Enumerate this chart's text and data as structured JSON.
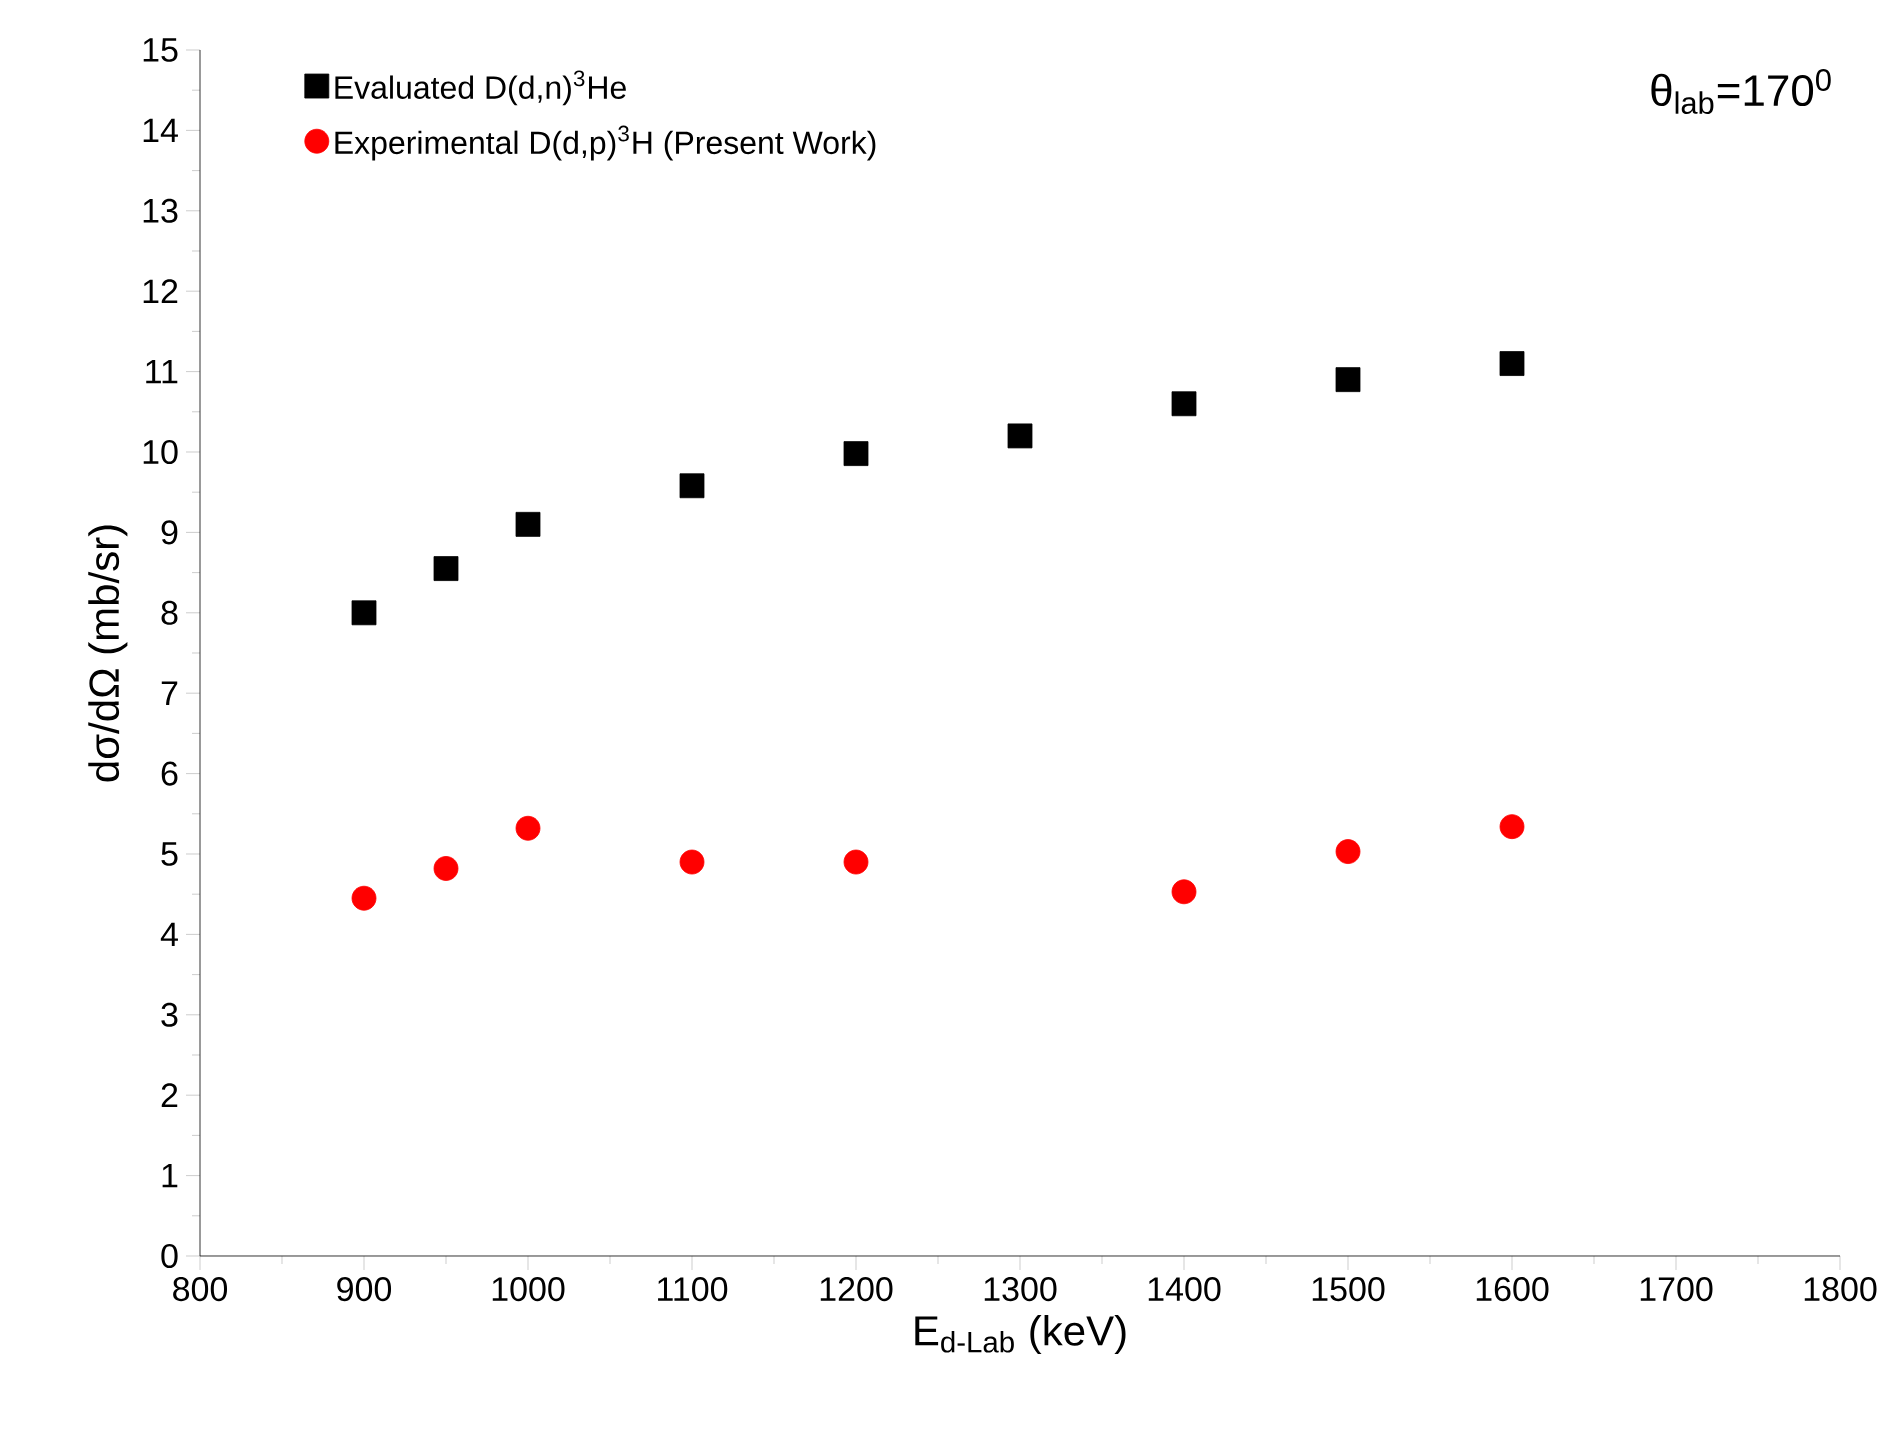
{
  "chart_data": {
    "type": "scatter",
    "xlabel": "E$_{d-Lab}$ (keV)",
    "ylabel": "dσ/dΩ (mb/sr)",
    "annotations": [
      "θ$_{lab}$=170$^{0}$"
    ],
    "x": [
      900,
      950,
      1000,
      1100,
      1200,
      1300,
      1400,
      1500,
      1600
    ],
    "series": [
      {
        "name": "Evaluated  D(d,n)$^{3}$He",
        "color": "#000000",
        "marker": "square",
        "values": [
          8.0,
          8.55,
          9.1,
          9.58,
          9.98,
          10.2,
          10.6,
          10.9,
          11.1
        ]
      },
      {
        "name": "Experimental D(d,p)$^{3}$H   (Present Work)",
        "color": "#ff0000",
        "marker": "circle",
        "values": [
          4.45,
          4.82,
          5.32,
          4.9,
          4.9,
          null,
          4.53,
          5.03,
          5.34
        ]
      }
    ],
    "xlim": [
      800,
      1800
    ],
    "xticks": [
      800,
      900,
      1000,
      1100,
      1200,
      1300,
      1400,
      1500,
      1600,
      1700,
      1800
    ],
    "ylim": [
      0,
      15
    ],
    "yticks": [
      0,
      1,
      2,
      3,
      4,
      5,
      6,
      7,
      8,
      9,
      10,
      11,
      12,
      13,
      14,
      15
    ],
    "grid": false,
    "legend": "top left"
  }
}
